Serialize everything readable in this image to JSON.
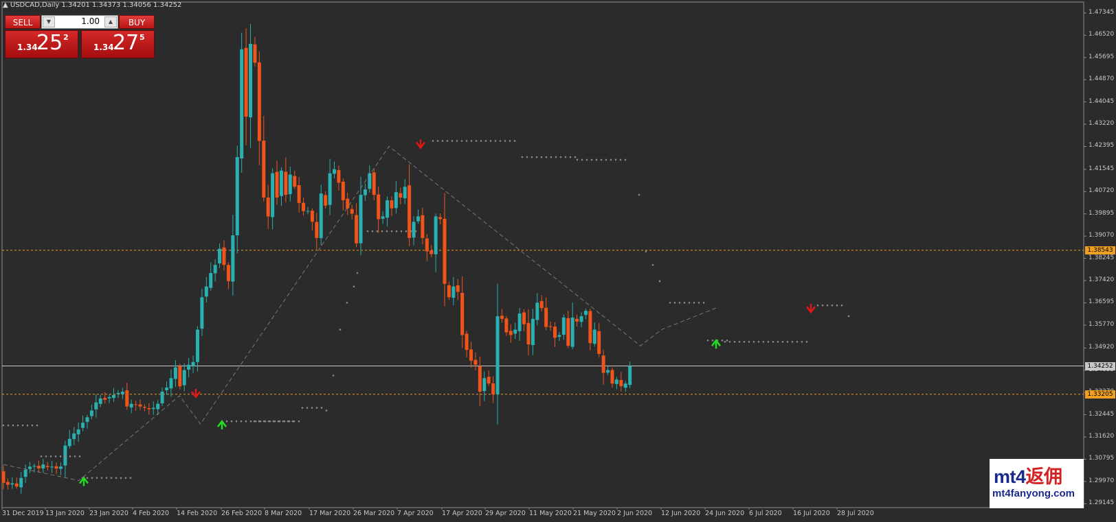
{
  "header": {
    "arrow": "▲",
    "symbol": "USDCAD,Daily",
    "ohlc": "1.34201 1.34373 1.34056 1.34252"
  },
  "trade_panel": {
    "sell_label": "SELL",
    "buy_label": "BUY",
    "lot_value": "1.00",
    "sell_quote": {
      "prefix": "1.34",
      "big": "25",
      "sup": "2"
    },
    "buy_quote": {
      "prefix": "1.34",
      "big": "27",
      "sup": "5"
    }
  },
  "price_scale": {
    "labels": [
      "1.47345",
      "1.46520",
      "1.45695",
      "1.44870",
      "1.44045",
      "1.43220",
      "1.42395",
      "1.41545",
      "1.40720",
      "1.39895",
      "1.39070",
      "1.38245",
      "1.37420",
      "1.36595",
      "1.35770",
      "1.34920",
      "1.34095",
      "1.33270",
      "1.32445",
      "1.31620",
      "1.30795",
      "1.29970",
      "1.29145"
    ],
    "badges": [
      {
        "value": "1.38543",
        "color": "#f0a020",
        "text_color": "#000000"
      },
      {
        "value": "1.34252",
        "color": "#c8c8c8",
        "text_color": "#000000"
      },
      {
        "value": "1.33205",
        "color": "#f0a020",
        "text_color": "#000000"
      }
    ]
  },
  "time_scale": {
    "labels": [
      "31 Dec 2019",
      "13 Jan 2020",
      "23 Jan 2020",
      "4 Feb 2020",
      "14 Feb 2020",
      "26 Feb 2020",
      "8 Mar 2020",
      "17 Mar 2020",
      "26 Mar 2020",
      "7 Apr 2020",
      "17 Apr 2020",
      "29 Apr 2020",
      "11 May 2020",
      "21 May 2020",
      "2 Jun 2020",
      "12 Jun 2020",
      "24 Jun 2020",
      "6 Jul 2020",
      "16 Jul 2020",
      "28 Jul 2020"
    ]
  },
  "colors": {
    "background": "#2b2b2b",
    "bull": "#2ab0b0",
    "bear": "#f0541a",
    "level_line": "#f0a020",
    "bid_line": "#c8c8c8",
    "dots": "#8a8a8a",
    "arrow_up": "#22dd22",
    "arrow_down": "#e01818"
  },
  "chart_data": {
    "type": "candlestick",
    "symbol": "USDCAD",
    "timeframe": "Daily",
    "y_range": [
      1.29,
      1.4775
    ],
    "levels": [
      1.38543,
      1.33205
    ],
    "bid": 1.34252,
    "close": [
      1.2992,
      1.2985,
      1.299,
      1.2978,
      1.301,
      1.304,
      1.3052,
      1.3055,
      1.3045,
      1.306,
      1.305,
      1.3052,
      1.3045,
      1.3052,
      1.313,
      1.3155,
      1.3175,
      1.319,
      1.3215,
      1.3235,
      1.326,
      1.329,
      1.3305,
      1.33,
      1.331,
      1.3318,
      1.3325,
      1.333,
      1.3275,
      1.3285,
      1.3282,
      1.3275,
      1.327,
      1.3265,
      1.327,
      1.3285,
      1.333,
      1.3345,
      1.338,
      1.342,
      1.335,
      1.341,
      1.343,
      1.344,
      1.356,
      1.368,
      1.372,
      1.377,
      1.38,
      1.386,
      1.38,
      1.374,
      1.391,
      1.42,
      1.46,
      1.435,
      1.462,
      1.455,
      1.426,
      1.405,
      1.398,
      1.414,
      1.405,
      1.415,
      1.406,
      1.4135,
      1.409,
      1.403,
      1.4,
      1.4,
      1.396,
      1.39,
      1.4065,
      1.402,
      1.414,
      1.4155,
      1.4105,
      1.404,
      1.401,
      1.399,
      1.388,
      1.406,
      1.408,
      1.414,
      1.406,
      1.397,
      1.398,
      1.404,
      1.401,
      1.407,
      1.405,
      1.409,
      1.39,
      1.396,
      1.398,
      1.39,
      1.385,
      1.384,
      1.398,
      1.397,
      1.373,
      1.368,
      1.372,
      1.37,
      1.354,
      1.3485,
      1.3445,
      1.343,
      1.333,
      1.338,
      1.336,
      1.332,
      1.361,
      1.36,
      1.355,
      1.354,
      1.356,
      1.362,
      1.358,
      1.3505,
      1.36,
      1.366,
      1.364,
      1.357,
      1.357,
      1.353,
      1.354,
      1.3605,
      1.35,
      1.3605,
      1.359,
      1.361,
      1.363,
      1.351,
      1.356,
      1.347,
      1.34,
      1.341,
      1.336,
      1.3375,
      1.335,
      1.336,
      1.3425
    ]
  }
}
